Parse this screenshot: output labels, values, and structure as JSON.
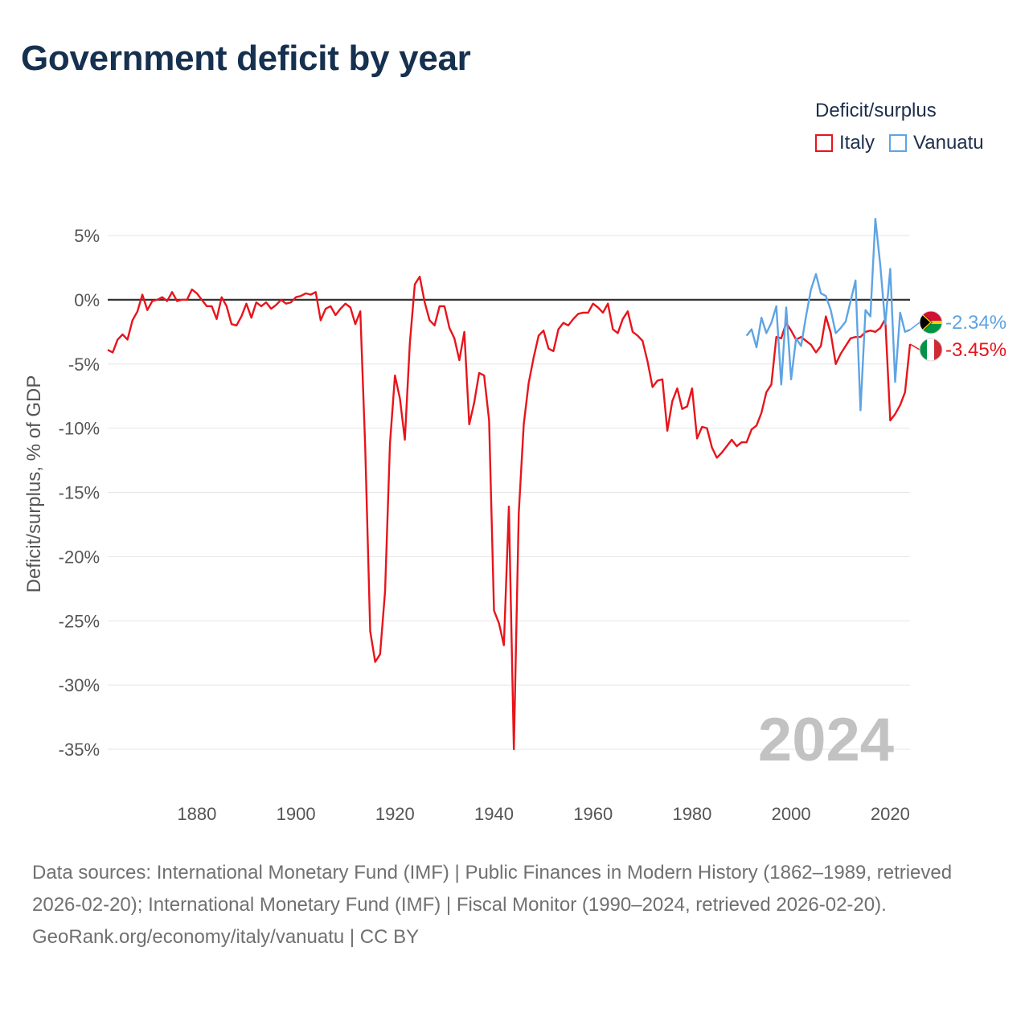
{
  "title": "Government deficit by year",
  "legend": {
    "title": "Deficit/surplus",
    "items": [
      {
        "label": "Italy",
        "color": "#e8141b"
      },
      {
        "label": "Vanuatu",
        "color": "#5ea4e4"
      }
    ]
  },
  "footer": {
    "sources": "Data sources: International Monetary Fund (IMF) | Public Finances in Modern History (1862–1989, retrieved 2026-02-20); International Monetary Fund (IMF) | Fiscal Monitor (1990–2024, retrieved 2026-02-20).",
    "link": "GeoRank.org/economy/italy/vanuatu | CC BY"
  },
  "chart_data": {
    "type": "line",
    "title": "Government deficit by year",
    "ylabel": "Deficit/surplus, % of GDP",
    "xlabel": "",
    "xlim": [
      1862,
      2024
    ],
    "ylim": [
      -37,
      7
    ],
    "x_ticks": [
      {
        "value": 1880,
        "label": "1880"
      },
      {
        "value": 1900,
        "label": "1900"
      },
      {
        "value": 1920,
        "label": "1920"
      },
      {
        "value": 1940,
        "label": "1940"
      },
      {
        "value": 1960,
        "label": "1960"
      },
      {
        "value": 1980,
        "label": "1980"
      },
      {
        "value": 2000,
        "label": "2000"
      },
      {
        "value": 2020,
        "label": "2020"
      }
    ],
    "y_ticks": [
      {
        "value": 5,
        "label": "5%"
      },
      {
        "value": 0,
        "label": "0%"
      },
      {
        "value": -5,
        "label": "-5%"
      },
      {
        "value": -10,
        "label": "-10%"
      },
      {
        "value": -15,
        "label": "-15%"
      },
      {
        "value": -20,
        "label": "-20%"
      },
      {
        "value": -25,
        "label": "-25%"
      },
      {
        "value": -30,
        "label": "-30%"
      },
      {
        "value": -35,
        "label": "-35%"
      }
    ],
    "year_label": "2024",
    "series": [
      {
        "name": "Italy",
        "color": "#e8141b",
        "end_label": "-3.45%",
        "x": [
          1862,
          1863,
          1864,
          1865,
          1866,
          1867,
          1868,
          1869,
          1870,
          1871,
          1872,
          1873,
          1874,
          1875,
          1876,
          1877,
          1878,
          1879,
          1880,
          1881,
          1882,
          1883,
          1884,
          1885,
          1886,
          1887,
          1888,
          1889,
          1890,
          1891,
          1892,
          1893,
          1894,
          1895,
          1896,
          1897,
          1898,
          1899,
          1900,
          1901,
          1902,
          1903,
          1904,
          1905,
          1906,
          1907,
          1908,
          1909,
          1910,
          1911,
          1912,
          1913,
          1914,
          1915,
          1916,
          1917,
          1918,
          1919,
          1920,
          1921,
          1922,
          1923,
          1924,
          1925,
          1926,
          1927,
          1928,
          1929,
          1930,
          1931,
          1932,
          1933,
          1934,
          1935,
          1936,
          1937,
          1938,
          1939,
          1940,
          1941,
          1942,
          1943,
          1944,
          1945,
          1946,
          1947,
          1948,
          1949,
          1950,
          1951,
          1952,
          1953,
          1954,
          1955,
          1956,
          1957,
          1958,
          1959,
          1960,
          1961,
          1962,
          1963,
          1964,
          1965,
          1966,
          1967,
          1968,
          1969,
          1970,
          1971,
          1972,
          1973,
          1974,
          1975,
          1976,
          1977,
          1978,
          1979,
          1980,
          1981,
          1982,
          1983,
          1984,
          1985,
          1986,
          1987,
          1988,
          1989,
          1990,
          1991,
          1992,
          1993,
          1994,
          1995,
          1996,
          1997,
          1998,
          1999,
          2000,
          2001,
          2002,
          2003,
          2004,
          2005,
          2006,
          2007,
          2008,
          2009,
          2010,
          2011,
          2012,
          2013,
          2014,
          2015,
          2016,
          2017,
          2018,
          2019,
          2020,
          2021,
          2022,
          2023,
          2024
        ],
        "values": [
          -3.9,
          -4.1,
          -3.1,
          -2.7,
          -3.1,
          -1.6,
          -0.9,
          0.4,
          -0.8,
          -0.1,
          0.0,
          0.2,
          -0.1,
          0.6,
          -0.1,
          0.0,
          0.0,
          0.8,
          0.5,
          0.0,
          -0.5,
          -0.5,
          -1.5,
          0.2,
          -0.5,
          -1.9,
          -2.0,
          -1.3,
          -0.3,
          -1.4,
          -0.2,
          -0.5,
          -0.2,
          -0.7,
          -0.4,
          0.0,
          -0.3,
          -0.2,
          0.2,
          0.3,
          0.5,
          0.4,
          0.6,
          -1.6,
          -0.7,
          -0.5,
          -1.2,
          -0.7,
          -0.3,
          -0.6,
          -1.9,
          -0.9,
          -11.5,
          -25.8,
          -28.2,
          -27.6,
          -22.7,
          -11.2,
          -5.9,
          -7.7,
          -10.9,
          -3.4,
          1.2,
          1.8,
          -0.2,
          -1.6,
          -2.0,
          -0.5,
          -0.5,
          -2.2,
          -3.0,
          -4.7,
          -2.5,
          -9.7,
          -8.0,
          -5.7,
          -5.9,
          -9.4,
          -24.2,
          -25.2,
          -26.9,
          -16.1,
          -35.0,
          -16.6,
          -9.7,
          -6.5,
          -4.5,
          -2.8,
          -2.4,
          -3.8,
          -4.0,
          -2.3,
          -1.8,
          -2.0,
          -1.5,
          -1.1,
          -1.0,
          -1.0,
          -0.3,
          -0.6,
          -1.0,
          -0.3,
          -2.3,
          -2.6,
          -1.5,
          -0.9,
          -2.5,
          -2.8,
          -3.2,
          -4.8,
          -6.8,
          -6.3,
          -6.2,
          -10.2,
          -7.9,
          -6.9,
          -8.5,
          -8.3,
          -6.9,
          -10.8,
          -9.9,
          -10.0,
          -11.5,
          -12.3,
          -11.9,
          -11.4,
          -10.9,
          -11.4,
          -11.1,
          -11.1,
          -10.1,
          -9.8,
          -8.8,
          -7.2,
          -6.6,
          -2.9,
          -3.0,
          -1.8,
          -2.4,
          -3.1,
          -2.9,
          -3.2,
          -3.5,
          -4.1,
          -3.6,
          -1.3,
          -2.6,
          -5.0,
          -4.2,
          -3.6,
          -3.0,
          -2.9,
          -2.9,
          -2.5,
          -2.4,
          -2.5,
          -2.2,
          -1.5,
          -9.4,
          -8.9,
          -8.2,
          -7.2,
          -3.45
        ]
      },
      {
        "name": "Vanuatu",
        "color": "#5ea4e4",
        "end_label": "-2.34%",
        "x": [
          1991,
          1992,
          1993,
          1994,
          1995,
          1996,
          1997,
          1998,
          1999,
          2000,
          2001,
          2002,
          2003,
          2004,
          2005,
          2006,
          2007,
          2008,
          2009,
          2010,
          2011,
          2012,
          2013,
          2014,
          2015,
          2016,
          2017,
          2018,
          2019,
          2020,
          2021,
          2022,
          2023,
          2024
        ],
        "values": [
          -2.8,
          -2.3,
          -3.7,
          -1.4,
          -2.6,
          -1.8,
          -0.5,
          -6.6,
          -0.6,
          -6.2,
          -3.0,
          -3.6,
          -1.3,
          0.8,
          2.0,
          0.5,
          0.3,
          -0.8,
          -2.6,
          -2.2,
          -1.7,
          -0.1,
          1.5,
          -8.6,
          -0.8,
          -1.3,
          6.3,
          2.7,
          -1.9,
          2.4,
          -6.4,
          -1.0,
          -2.5,
          -2.34
        ]
      }
    ]
  }
}
